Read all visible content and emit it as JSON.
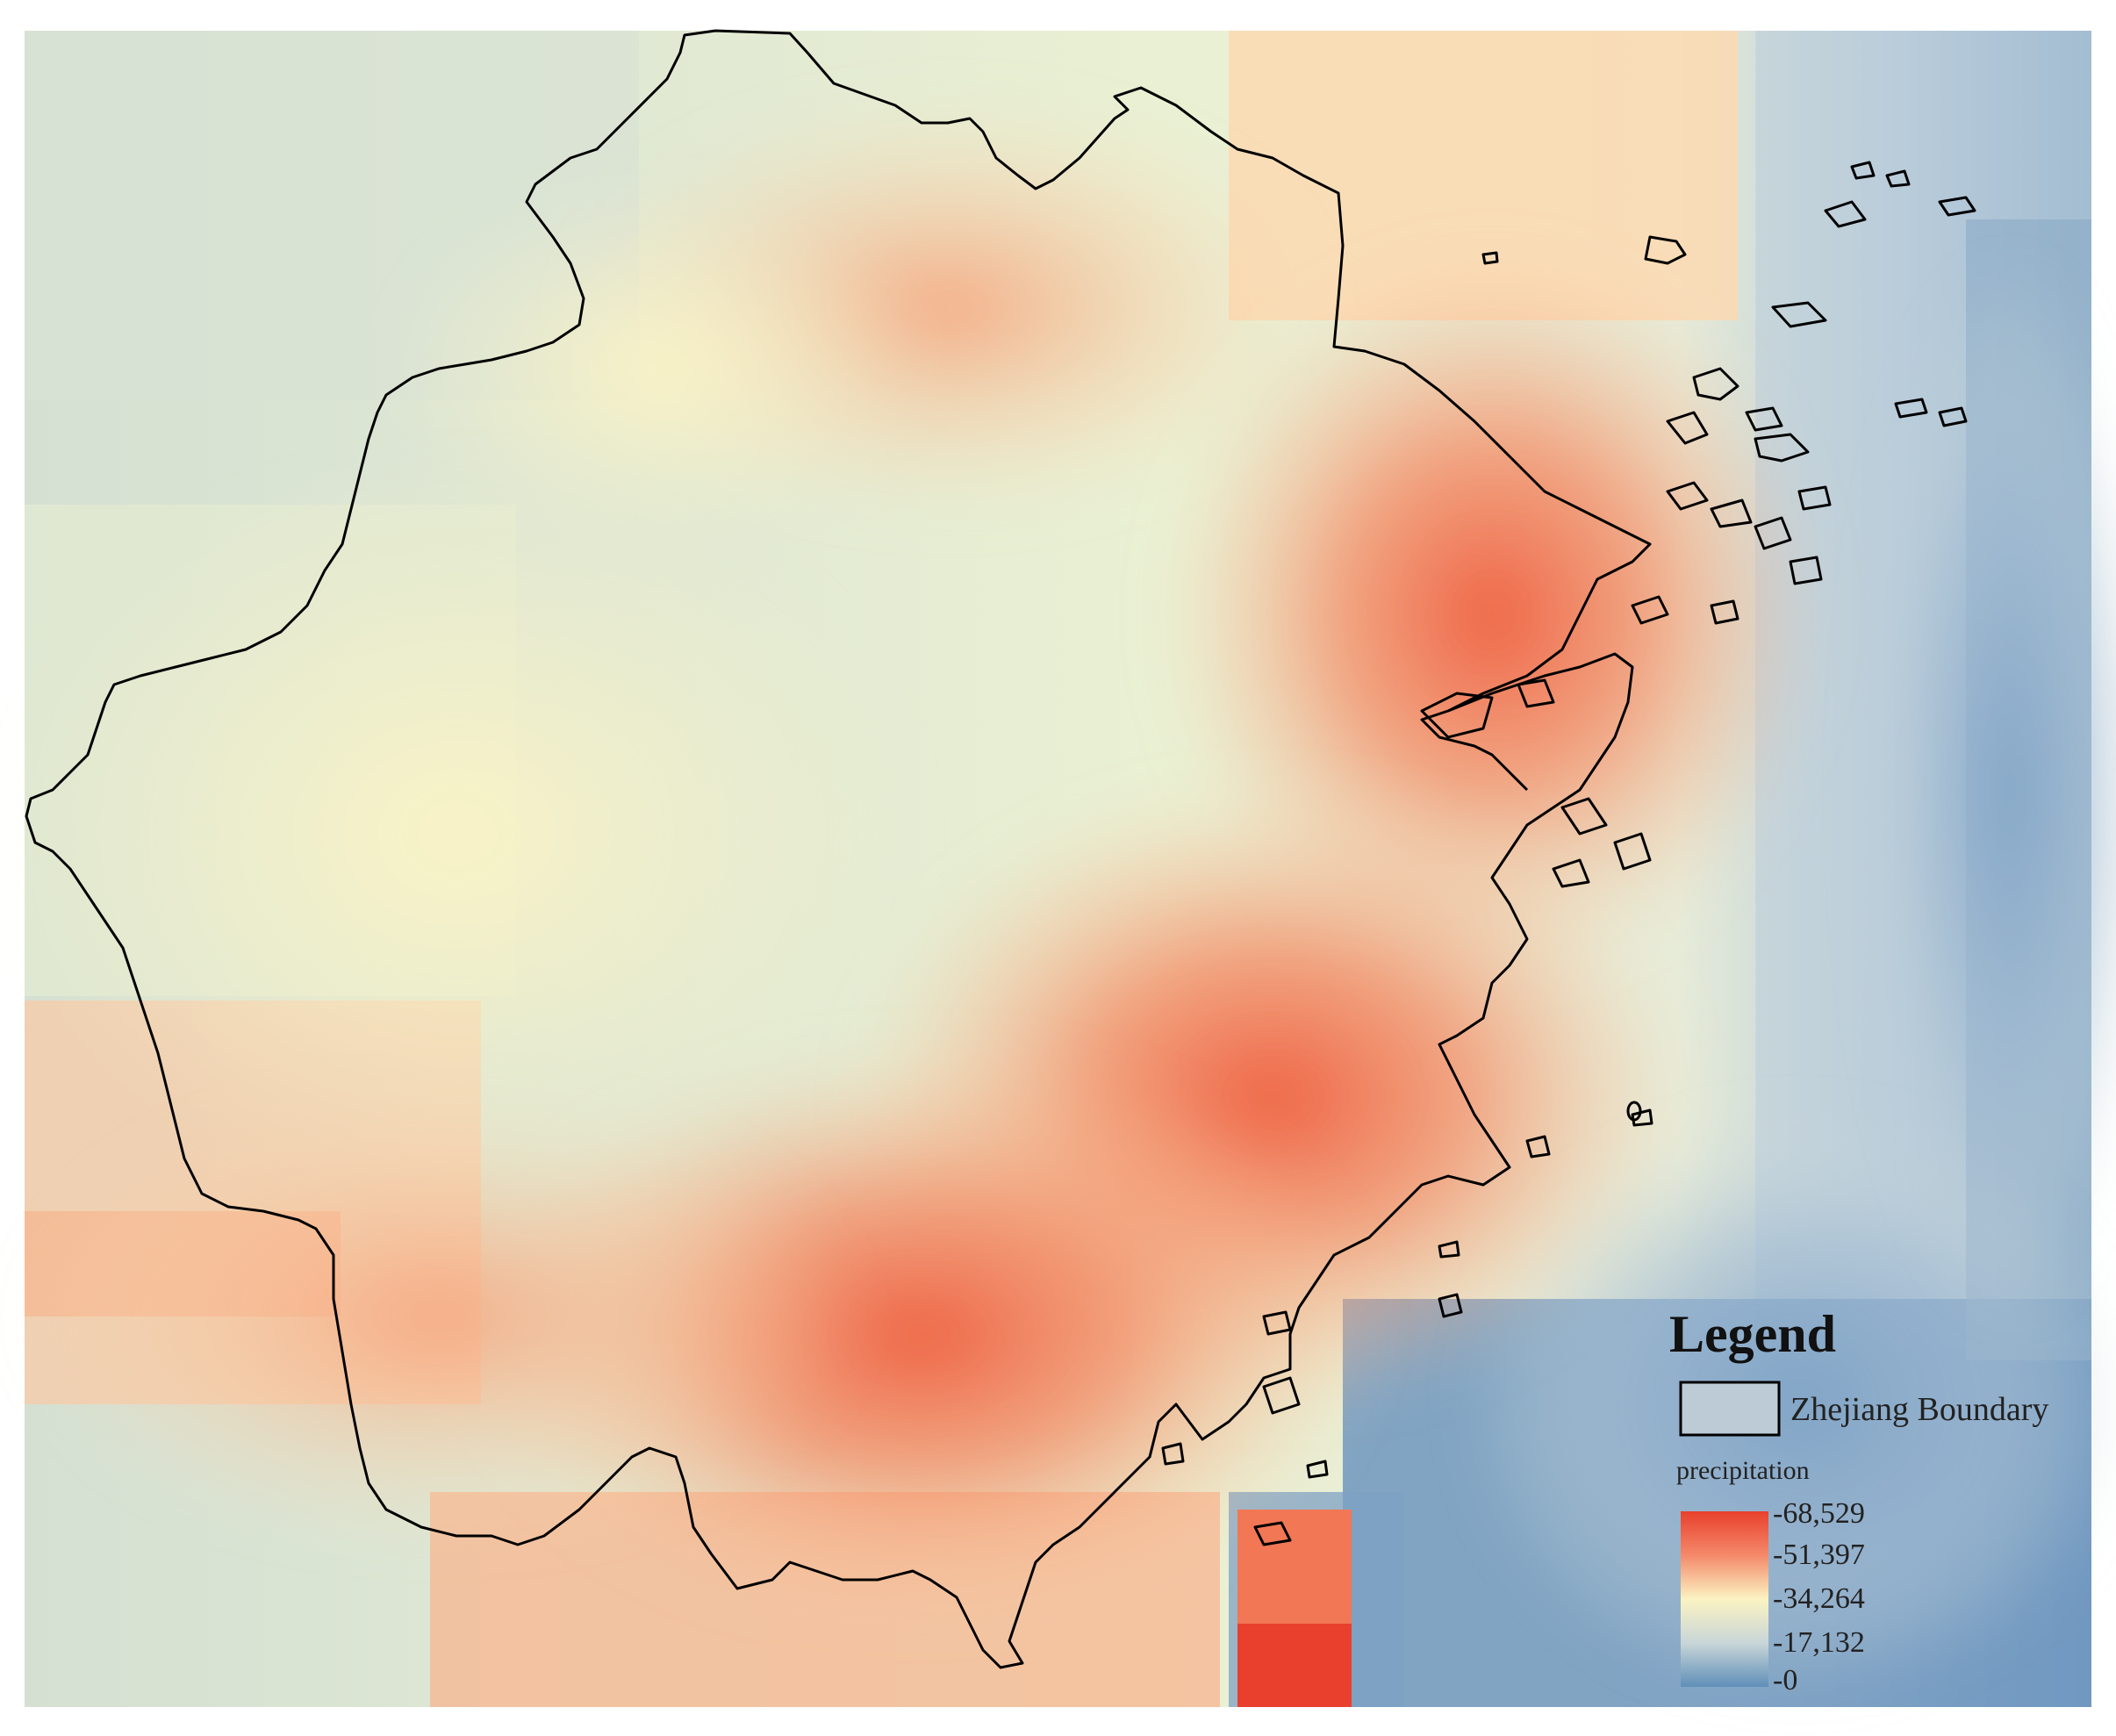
{
  "legend": {
    "title": "Legend",
    "boundary_label": "Zhejiang Boundary",
    "raster_label": "precipitation",
    "ticks": [
      "68,529",
      "51,397",
      "34,264",
      "17,132",
      "0"
    ]
  },
  "colors": {
    "high": "#e8402c",
    "mid_high": "#f4896a",
    "mid": "#fbf3c2",
    "mid_low": "#c9d6d8",
    "low": "#5f8fb8",
    "boundary": "#000000"
  }
}
